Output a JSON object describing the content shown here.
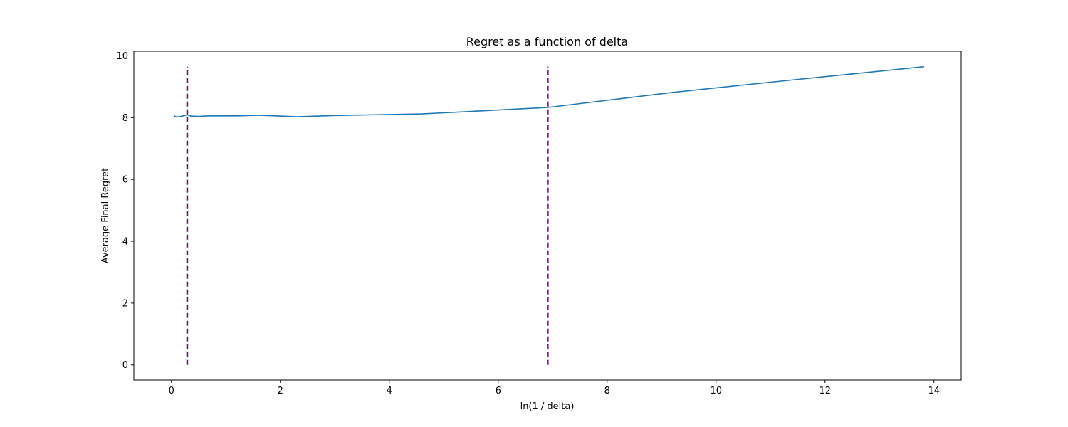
{
  "chart_data": {
    "type": "line",
    "title": "Regret as a function of delta",
    "xlabel": "ln(1 / delta)",
    "ylabel": "Average Final Regret",
    "xlim": [
      -0.69,
      14.5
    ],
    "ylim": [
      -0.49,
      10.15
    ],
    "xticks": [
      0,
      2,
      4,
      6,
      8,
      10,
      12,
      14
    ],
    "yticks": [
      0,
      2,
      4,
      6,
      8,
      10
    ],
    "grid": false,
    "series": [
      {
        "color": "#1f77b4",
        "x": [
          0.05,
          0.1,
          0.2,
          0.29,
          0.36,
          0.5,
          0.69,
          0.92,
          1.2,
          1.61,
          2.3,
          3.0,
          4.6,
          6.91,
          9.21,
          11.51,
          13.82
        ],
        "y": [
          8.06,
          8.02,
          8.05,
          8.09,
          8.05,
          8.04,
          8.06,
          8.06,
          8.06,
          8.08,
          8.03,
          8.07,
          8.12,
          8.33,
          8.82,
          9.24,
          9.65
        ]
      }
    ],
    "vlines": [
      {
        "x": 0.29,
        "ymin": 0,
        "ymax": 9.65,
        "color": "#800080",
        "style": "dashed"
      },
      {
        "x": 6.91,
        "ymin": 0,
        "ymax": 9.65,
        "color": "#800080",
        "style": "dashed"
      }
    ]
  }
}
